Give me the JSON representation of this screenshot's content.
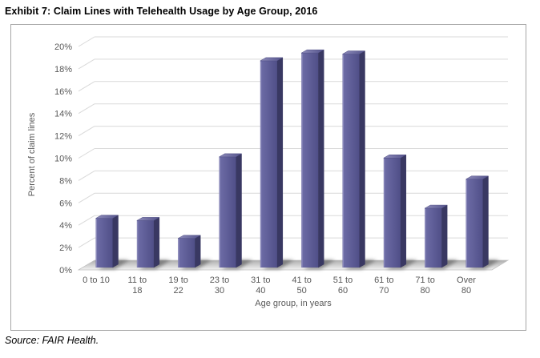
{
  "page": {
    "title": "Exhibit 7: Claim Lines with Telehealth Usage by Age Group, 2016",
    "source": "Source: FAIR Health."
  },
  "chart_data": {
    "type": "bar",
    "style": "3d-column",
    "title": "Exhibit 7: Claim Lines with Telehealth Usage by Age Group, 2016",
    "categories": [
      "0 to 10",
      "11 to 18",
      "19 to 22",
      "23 to 30",
      "31 to 40",
      "41 to 50",
      "51 to 60",
      "61 to 70",
      "71 to 80",
      "Over 80"
    ],
    "category_label_lines": [
      [
        "0 to 10"
      ],
      [
        "11 to",
        "18"
      ],
      [
        "19 to",
        "22"
      ],
      [
        "23 to",
        "30"
      ],
      [
        "31 to",
        "40"
      ],
      [
        "41 to",
        "50"
      ],
      [
        "51 to",
        "60"
      ],
      [
        "61 to",
        "70"
      ],
      [
        "71 to",
        "80"
      ],
      [
        "Over",
        "80"
      ]
    ],
    "values": [
      4.4,
      4.2,
      2.6,
      9.9,
      18.5,
      19.2,
      19.1,
      9.8,
      5.3,
      7.9
    ],
    "xlabel": "Age group, in years",
    "ylabel": "Percent of claim lines",
    "ylim": [
      0,
      20
    ],
    "ytick_step": 2,
    "ytick_labels": [
      "0%",
      "2%",
      "4%",
      "6%",
      "8%",
      "10%",
      "12%",
      "14%",
      "16%",
      "18%",
      "20%"
    ],
    "grid": "horizontal",
    "legend": "none",
    "source": "Source: FAIR Health."
  },
  "colors": {
    "bar_front_light": "#6e6da7",
    "bar_front_dark": "#504f88",
    "bar_side": "#393862",
    "bar_top_light": "#8d8bba",
    "bar_top_dark": "#55548c",
    "gridline": "#d9d9d9",
    "axis_text": "#595959",
    "box_border": "#a6a6a6",
    "floor_back": "#aeaeae",
    "floor_front": "#f2f2f2",
    "floor_edge": "#c0c0c0",
    "shadow": "#4f4f4f",
    "title_text": "#000000"
  }
}
